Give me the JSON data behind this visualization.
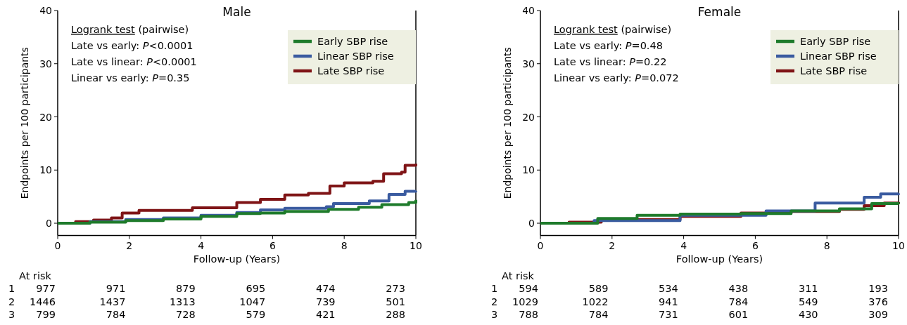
{
  "chart_data": [
    {
      "type": "step",
      "title": "Male",
      "xlabel": "Follow-up (Years)",
      "ylabel": "Endpoints per 100 participants",
      "xlim": [
        0,
        10
      ],
      "ylim": [
        -2.3,
        40
      ],
      "xticks": [
        0,
        2,
        4,
        6,
        8,
        10
      ],
      "yticks": [
        0,
        10,
        20,
        30,
        40
      ],
      "legend": "top right",
      "series": [
        {
          "name": "Early SBP rise",
          "color": "#1e7b2b",
          "x": [
            0,
            0.9,
            1.9,
            2.95,
            4.0,
            5.0,
            5.66,
            6.34,
            7.56,
            8.4,
            9.05,
            9.8,
            10
          ],
          "values": [
            0,
            0.2,
            0.5,
            0.8,
            1.3,
            1.8,
            1.9,
            2.2,
            2.6,
            3.0,
            3.5,
            3.9,
            4.4
          ]
        },
        {
          "name": "Linear SBP rise",
          "color": "#3a5ba0",
          "x": [
            0,
            0.9,
            1.9,
            2.95,
            4.0,
            5.0,
            5.66,
            6.34,
            7.5,
            7.7,
            8.7,
            9.25,
            9.7,
            10
          ],
          "values": [
            0,
            0.3,
            0.7,
            1.0,
            1.5,
            2.0,
            2.5,
            2.8,
            3.1,
            3.7,
            4.2,
            5.4,
            6.0,
            6.1
          ]
        },
        {
          "name": "Late SBP rise",
          "color": "#7f1416",
          "x": [
            0,
            0.5,
            1.0,
            1.5,
            1.8,
            2.27,
            3.76,
            5.0,
            5.66,
            6.34,
            7.0,
            7.6,
            8.0,
            8.8,
            9.1,
            9.6,
            9.7,
            10
          ],
          "values": [
            0,
            0.3,
            0.6,
            1.0,
            1.9,
            2.4,
            2.9,
            3.9,
            4.5,
            5.3,
            5.6,
            7.0,
            7.6,
            7.9,
            9.3,
            9.6,
            10.9,
            11.2
          ]
        }
      ],
      "annotations": [
        "Logrank test (pairwise)",
        "Late vs early: P<0.0001",
        "Late vs linear: P<0.0001",
        "Linear vs early: P=0.35",
        "At risk",
        "1 977 971 879 695 474 273",
        "2 1446 1437 1313 1047 739 501",
        "3 799 784 728 579 421 288"
      ]
    },
    {
      "type": "step",
      "title": "Female",
      "xlabel": "Follow-up (Years)",
      "ylabel": "Endpoints per 100 participants",
      "xlim": [
        0,
        10
      ],
      "ylim": [
        -2.3,
        40
      ],
      "xticks": [
        0,
        2,
        4,
        6,
        8,
        10
      ],
      "yticks": [
        0,
        10,
        20,
        30,
        40
      ],
      "legend": "top right",
      "series": [
        {
          "name": "Early SBP rise",
          "color": "#1e7b2b",
          "x": [
            0,
            1.56,
            1.6,
            2.7,
            3.9,
            5.6,
            7.0,
            8.35,
            9.25,
            10
          ],
          "values": [
            0,
            0,
            0.9,
            1.5,
            1.7,
            1.8,
            2.3,
            2.7,
            3.7,
            3.6
          ]
        },
        {
          "name": "Linear SBP rise",
          "color": "#3a5ba0",
          "x": [
            0,
            1.5,
            3.9,
            6.3,
            7.67,
            9.04,
            9.5,
            10
          ],
          "values": [
            0,
            0.5,
            1.5,
            2.3,
            3.8,
            4.9,
            5.5,
            5.6
          ]
        },
        {
          "name": "Late SBP rise",
          "color": "#7f1416",
          "x": [
            0,
            0.8,
            1.7,
            3.9,
            5.6,
            7.0,
            8.35,
            9.04,
            9.6,
            10
          ],
          "values": [
            0,
            0.2,
            0.7,
            1.3,
            1.9,
            2.2,
            2.6,
            3.3,
            3.8,
            4.0
          ]
        }
      ],
      "annotations": [
        "Logrank test (pairwise)",
        "Late vs early: P=0.48",
        "Late vs linear: P=0.22",
        "Linear vs early: P=0.072",
        "At risk",
        "1 594 589 534 438 311 193",
        "2 1029 1022 941 784 549 376",
        "3 788 784 731 601 430 309"
      ]
    }
  ]
}
